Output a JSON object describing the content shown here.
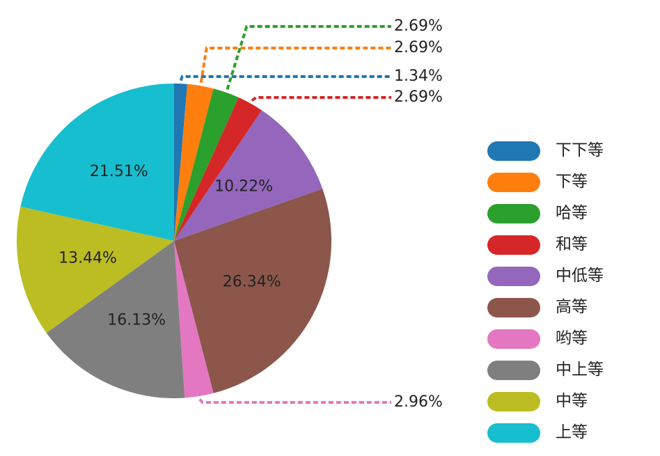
{
  "chart_data": {
    "type": "pie",
    "title": "",
    "start": "top",
    "direction": "clockwise",
    "legend_position": "right",
    "slices": [
      {
        "label": "下下等",
        "value": 1.34,
        "display": "1.34%",
        "color": "#1f77b4",
        "label_style": "outside-callout"
      },
      {
        "label": "下等",
        "value": 2.69,
        "display": "2.69%",
        "color": "#ff7f0e",
        "label_style": "outside-callout"
      },
      {
        "label": "哈等",
        "value": 2.69,
        "display": "2.69%",
        "color": "#2ca02c",
        "label_style": "outside-callout"
      },
      {
        "label": "和等",
        "value": 2.69,
        "display": "2.69%",
        "color": "#d62728",
        "label_style": "outside-callout"
      },
      {
        "label": "中低等",
        "value": 10.22,
        "display": "10.22%",
        "color": "#9467bd",
        "label_style": "inside"
      },
      {
        "label": "高等",
        "value": 26.34,
        "display": "26.34%",
        "color": "#8c564b",
        "label_style": "inside"
      },
      {
        "label": "哟等",
        "value": 2.96,
        "display": "2.96%",
        "color": "#e377c2",
        "label_style": "outside-callout"
      },
      {
        "label": "中上等",
        "value": 16.13,
        "display": "16.13%",
        "color": "#7f7f7f",
        "label_style": "inside"
      },
      {
        "label": "中等",
        "value": 13.44,
        "display": "13.44%",
        "color": "#bcbd22",
        "label_style": "inside"
      },
      {
        "label": "上等",
        "value": 21.51,
        "display": "21.51%",
        "color": "#17becf",
        "label_style": "inside"
      }
    ]
  }
}
